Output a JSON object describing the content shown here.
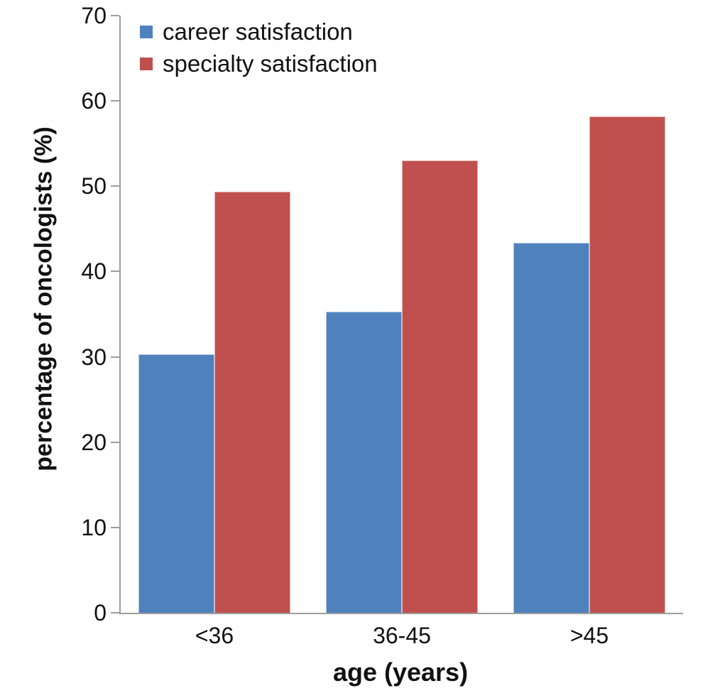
{
  "chart_data": {
    "type": "bar",
    "title": "",
    "categories": [
      "<36",
      "36-45",
      ">45"
    ],
    "series": [
      {
        "name": "career satisfaction",
        "color": "#4F81BD",
        "values": [
          30.3,
          35.3,
          43.4
        ]
      },
      {
        "name": "specialty satisfaction",
        "color": "#C0504D",
        "values": [
          49.4,
          53.0,
          58.2
        ]
      }
    ],
    "xlabel": "age (years)",
    "ylabel": "percentage of oncologists (%)",
    "ylim": [
      0,
      70
    ],
    "yticks": [
      0,
      10,
      20,
      30,
      40,
      50,
      60,
      70
    ],
    "grid": false,
    "legend_position": "top-left"
  },
  "colors": {
    "axis": "#9d9d9d",
    "text": "#111111",
    "background": "#ffffff",
    "series_blue": "#4F81BD",
    "series_red": "#C0504D"
  }
}
